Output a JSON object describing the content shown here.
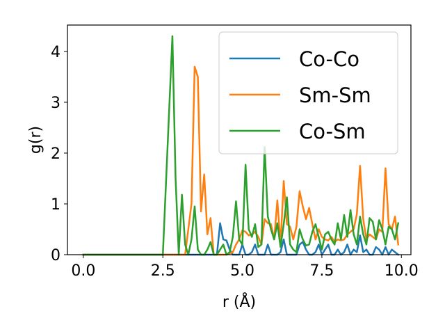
{
  "chart_data": {
    "type": "line",
    "xlabel": "r (Å)",
    "ylabel": "g(r)",
    "xlim": [
      -0.5,
      10.3
    ],
    "ylim": [
      0,
      4.52
    ],
    "xticks": [
      0.0,
      2.5,
      5.0,
      7.5,
      10.0
    ],
    "xtick_labels": [
      "0.0",
      "2.5",
      "5.0",
      "7.5",
      "10.0"
    ],
    "yticks": [
      0,
      1,
      2,
      3,
      4
    ],
    "ytick_labels": [
      "0",
      "1",
      "2",
      "3",
      "4"
    ],
    "grid": false,
    "legend_position": "upper-right",
    "series": [
      {
        "name": "Co-Co",
        "color": "#1f77b4",
        "x": [
          0.0,
          2.5,
          3.0,
          3.5,
          4.0,
          4.2,
          4.3,
          4.4,
          4.5,
          4.6,
          4.7,
          4.8,
          4.9,
          5.0,
          5.1,
          5.2,
          5.3,
          5.4,
          5.5,
          5.6,
          5.7,
          5.8,
          5.9,
          6.0,
          6.1,
          6.2,
          6.3,
          6.4,
          6.5,
          6.6,
          6.7,
          6.8,
          6.9,
          7.0,
          7.1,
          7.2,
          7.3,
          7.4,
          7.5,
          7.6,
          7.7,
          7.8,
          7.9,
          8.0,
          8.1,
          8.2,
          8.3,
          8.4,
          8.5,
          8.6,
          8.7,
          8.8,
          8.9,
          9.0,
          9.1,
          9.2,
          9.3,
          9.4,
          9.5,
          9.6,
          9.7,
          9.8,
          9.9
        ],
        "y": [
          0,
          0,
          0,
          0,
          0,
          0,
          0.62,
          0.3,
          0.28,
          0.1,
          0,
          0,
          0,
          0.2,
          0,
          0,
          0.05,
          0.2,
          0,
          0,
          0,
          0.2,
          0,
          0,
          0,
          0.05,
          0.3,
          0,
          0,
          0,
          0,
          0.2,
          0.25,
          0.1,
          0,
          0,
          0.05,
          0.2,
          0,
          0.1,
          0.2,
          0,
          0,
          0.1,
          0,
          0.05,
          0.2,
          0,
          0.1,
          0.05,
          0.38,
          0.05,
          0.1,
          0,
          0,
          0.15,
          0.1,
          0,
          0.15,
          0,
          0.1,
          0.05,
          0
        ]
      },
      {
        "name": "Sm-Sm",
        "color": "#ff7f0e",
        "x": [
          0.0,
          3.2,
          3.4,
          3.5,
          3.6,
          3.7,
          3.8,
          3.9,
          4.0,
          4.1,
          4.2,
          4.3,
          4.5,
          4.7,
          4.8,
          4.9,
          5.0,
          5.1,
          5.2,
          5.3,
          5.4,
          5.5,
          5.6,
          5.7,
          5.8,
          5.9,
          6.0,
          6.1,
          6.2,
          6.3,
          6.4,
          6.5,
          6.6,
          6.7,
          6.8,
          6.9,
          7.0,
          7.1,
          7.2,
          7.3,
          7.4,
          7.5,
          7.6,
          7.7,
          7.8,
          7.9,
          8.0,
          8.1,
          8.2,
          8.3,
          8.4,
          8.5,
          8.6,
          8.7,
          8.8,
          8.9,
          9.0,
          9.1,
          9.2,
          9.3,
          9.4,
          9.5,
          9.6,
          9.7,
          9.8,
          9.9
        ],
        "y": [
          0,
          0,
          1.0,
          3.7,
          3.5,
          0.85,
          1.58,
          0.4,
          0.72,
          0,
          0,
          0,
          0,
          0.05,
          0.2,
          0.3,
          0.48,
          0.45,
          0.38,
          0.4,
          0.45,
          0.35,
          0.2,
          0.7,
          0.62,
          0.6,
          0.3,
          1.07,
          0.2,
          1.45,
          0.6,
          0.55,
          0.3,
          0.55,
          1.25,
          0.95,
          0.7,
          0.92,
          0.6,
          0.3,
          0.5,
          0.35,
          0.3,
          0.28,
          0.35,
          0.25,
          0.3,
          0.28,
          0.3,
          0.4,
          0.45,
          0.5,
          0.8,
          1.75,
          0.7,
          0.3,
          0.4,
          0.35,
          0.3,
          0.5,
          0.45,
          1.7,
          0.6,
          0.5,
          0.75,
          0.2
        ]
      },
      {
        "name": "Co-Sm",
        "color": "#2ca02c",
        "x": [
          0.0,
          2.5,
          2.8,
          2.9,
          3.0,
          3.1,
          3.2,
          3.3,
          3.4,
          3.5,
          3.6,
          3.7,
          3.8,
          3.9,
          4.0,
          4.1,
          4.2,
          4.3,
          4.4,
          4.5,
          4.6,
          4.7,
          4.8,
          4.9,
          5.0,
          5.1,
          5.2,
          5.3,
          5.4,
          5.5,
          5.6,
          5.7,
          5.8,
          5.9,
          6.0,
          6.1,
          6.2,
          6.3,
          6.4,
          6.5,
          6.6,
          6.7,
          6.8,
          6.9,
          7.0,
          7.1,
          7.2,
          7.3,
          7.4,
          7.5,
          7.6,
          7.7,
          7.8,
          7.9,
          8.0,
          8.1,
          8.2,
          8.3,
          8.4,
          8.5,
          8.6,
          8.7,
          8.8,
          8.9,
          9.0,
          9.1,
          9.2,
          9.3,
          9.4,
          9.5,
          9.6,
          9.7,
          9.8,
          9.9
        ],
        "y": [
          0,
          0,
          4.3,
          1.5,
          0,
          1.18,
          0.2,
          0,
          0.3,
          0.95,
          0.1,
          0,
          0,
          0.1,
          0.25,
          0,
          0,
          0.1,
          0.2,
          0,
          0.05,
          0.35,
          1.05,
          0.3,
          0.2,
          1.77,
          0.5,
          0.35,
          0.6,
          0.15,
          0.2,
          2.12,
          0.75,
          0.5,
          0.3,
          0.62,
          0.15,
          0.6,
          1.13,
          0.2,
          0.1,
          0.05,
          0.5,
          0.3,
          0.18,
          0.2,
          0.45,
          0.6,
          0.35,
          0.1,
          0.4,
          0.45,
          0.3,
          0.2,
          0.62,
          0.3,
          0.78,
          0.35,
          0.88,
          0.4,
          0.2,
          0.75,
          0.4,
          0.2,
          0.72,
          0.65,
          0.3,
          0.68,
          0.5,
          0.2,
          0.55,
          0.5,
          0.3,
          0.62
        ]
      }
    ]
  }
}
